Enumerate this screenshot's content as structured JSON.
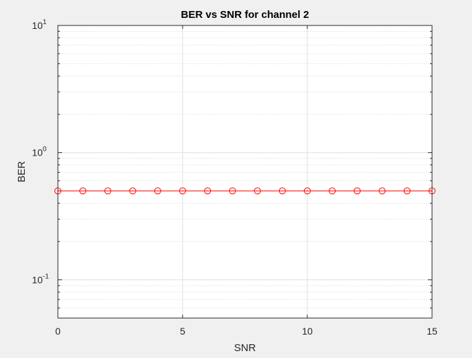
{
  "chart_data": {
    "type": "line",
    "title": "BER vs SNR for channel 2",
    "xlabel": "SNR",
    "ylabel": "BER",
    "xlim": [
      0,
      15
    ],
    "ylim": [
      0.05,
      10
    ],
    "yscale": "log",
    "grid": true,
    "x_ticks": [
      "0",
      "5",
      "10",
      "15"
    ],
    "y_ticks": [
      {
        "base": "10",
        "exp": "1",
        "value": 10
      },
      {
        "base": "10",
        "exp": "0",
        "value": 1
      },
      {
        "base": "10",
        "exp": "-1",
        "value": 0.1
      }
    ],
    "series": [
      {
        "color": "#ff0000",
        "marker": "circle",
        "x": [
          0,
          1,
          2,
          3,
          4,
          5,
          6,
          7,
          8,
          9,
          10,
          11,
          12,
          13,
          14,
          15
        ],
        "y": [
          0.5,
          0.5,
          0.5,
          0.5,
          0.5,
          0.5,
          0.5,
          0.5,
          0.5,
          0.5,
          0.5,
          0.5,
          0.5,
          0.5,
          0.5,
          0.5
        ]
      }
    ]
  }
}
